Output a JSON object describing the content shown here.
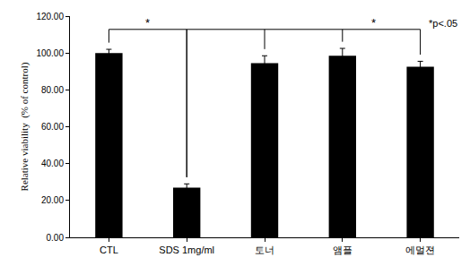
{
  "chart_data": {
    "type": "bar",
    "categories": [
      "CTL",
      "SDS 1mg/ml",
      "토너",
      "앰플",
      "에멀젼"
    ],
    "values": [
      100,
      27,
      94.5,
      98.5,
      92.5
    ],
    "errors": [
      2,
      2,
      4,
      4,
      3
    ],
    "color": "#000000",
    "y_label": "Relative viability  (% of control)",
    "ylim": [
      0,
      120
    ],
    "yticks": [
      {
        "value": 0,
        "label": "0.00"
      },
      {
        "value": 20,
        "label": "20.00"
      },
      {
        "value": 40,
        "label": "40.00"
      },
      {
        "value": 60,
        "label": "60.00"
      },
      {
        "value": 80,
        "label": "80.00"
      },
      {
        "value": 100,
        "label": "100.00"
      },
      {
        "value": 120,
        "label": "120.00"
      }
    ],
    "grid": false,
    "significance": [
      {
        "from": "CTL",
        "to": [
          "SDS 1mg/ml"
        ],
        "label": "*"
      },
      {
        "from": "SDS 1mg/ml",
        "to": [
          "토너",
          "앰플",
          "에멀젼"
        ],
        "label": "*"
      }
    ],
    "note": "*p<.05"
  }
}
